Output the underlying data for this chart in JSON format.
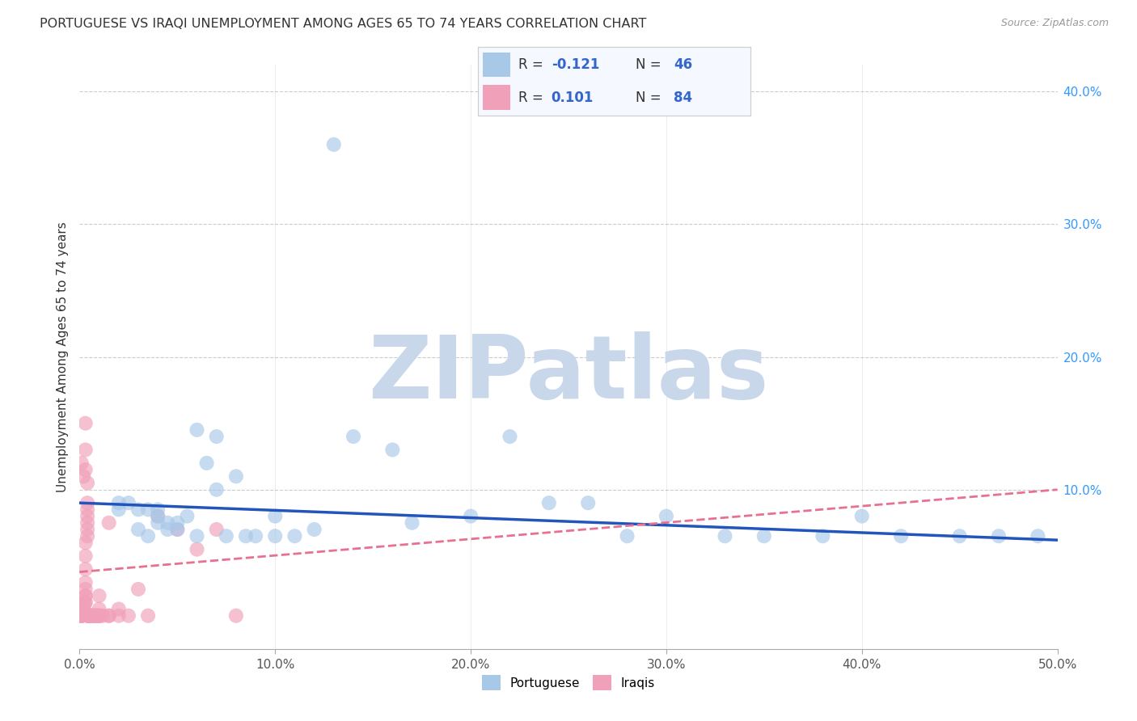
{
  "title": "PORTUGUESE VS IRAQI UNEMPLOYMENT AMONG AGES 65 TO 74 YEARS CORRELATION CHART",
  "source": "Source: ZipAtlas.com",
  "ylabel": "Unemployment Among Ages 65 to 74 years",
  "xlim": [
    0.0,
    0.5
  ],
  "ylim": [
    -0.02,
    0.42
  ],
  "background_color": "#ffffff",
  "watermark": "ZIPatlas",
  "watermark_color": "#c8d8ea",
  "portuguese_color": "#a8c8e8",
  "iraqi_color": "#f0a0b8",
  "portuguese_line_color": "#2255bb",
  "iraqi_line_color": "#e87090",
  "grid_color": "#cccccc",
  "portuguese_x": [
    0.02,
    0.02,
    0.025,
    0.03,
    0.03,
    0.035,
    0.035,
    0.04,
    0.04,
    0.04,
    0.045,
    0.045,
    0.05,
    0.05,
    0.055,
    0.06,
    0.06,
    0.065,
    0.07,
    0.07,
    0.075,
    0.08,
    0.085,
    0.09,
    0.1,
    0.1,
    0.11,
    0.12,
    0.13,
    0.14,
    0.16,
    0.17,
    0.2,
    0.22,
    0.24,
    0.26,
    0.28,
    0.3,
    0.33,
    0.35,
    0.38,
    0.4,
    0.42,
    0.45,
    0.47,
    0.49
  ],
  "portuguese_y": [
    0.09,
    0.085,
    0.09,
    0.085,
    0.07,
    0.085,
    0.065,
    0.085,
    0.08,
    0.075,
    0.075,
    0.07,
    0.075,
    0.07,
    0.08,
    0.145,
    0.065,
    0.12,
    0.14,
    0.1,
    0.065,
    0.11,
    0.065,
    0.065,
    0.08,
    0.065,
    0.065,
    0.07,
    0.36,
    0.14,
    0.13,
    0.075,
    0.08,
    0.14,
    0.09,
    0.09,
    0.065,
    0.08,
    0.065,
    0.065,
    0.065,
    0.08,
    0.065,
    0.065,
    0.065,
    0.065
  ],
  "iraqi_x": [
    0.0,
    0.001,
    0.001,
    0.001,
    0.001,
    0.001,
    0.002,
    0.002,
    0.002,
    0.002,
    0.003,
    0.003,
    0.003,
    0.003,
    0.003,
    0.003,
    0.003,
    0.003,
    0.003,
    0.004,
    0.004,
    0.004,
    0.004,
    0.004,
    0.004,
    0.004,
    0.005,
    0.005,
    0.005,
    0.005,
    0.005,
    0.005,
    0.005,
    0.005,
    0.005,
    0.005,
    0.006,
    0.006,
    0.006,
    0.007,
    0.007,
    0.008,
    0.008,
    0.009,
    0.01,
    0.01,
    0.01,
    0.01,
    0.015,
    0.015,
    0.02,
    0.02,
    0.025,
    0.03,
    0.035,
    0.04,
    0.05,
    0.06,
    0.07,
    0.08,
    0.001,
    0.002,
    0.003,
    0.003,
    0.003,
    0.004,
    0.004,
    0.005,
    0.005,
    0.005,
    0.005,
    0.005,
    0.005,
    0.005,
    0.005,
    0.006,
    0.006,
    0.007,
    0.008,
    0.009,
    0.01,
    0.01,
    0.012,
    0.015
  ],
  "iraqi_y": [
    0.005,
    0.005,
    0.005,
    0.005,
    0.005,
    0.01,
    0.01,
    0.01,
    0.01,
    0.015,
    0.015,
    0.015,
    0.02,
    0.02,
    0.025,
    0.03,
    0.04,
    0.05,
    0.06,
    0.065,
    0.07,
    0.075,
    0.08,
    0.085,
    0.09,
    0.105,
    0.005,
    0.005,
    0.005,
    0.005,
    0.005,
    0.005,
    0.005,
    0.005,
    0.005,
    0.005,
    0.005,
    0.005,
    0.005,
    0.005,
    0.005,
    0.005,
    0.005,
    0.005,
    0.005,
    0.005,
    0.01,
    0.02,
    0.005,
    0.075,
    0.005,
    0.01,
    0.005,
    0.025,
    0.005,
    0.08,
    0.07,
    0.055,
    0.07,
    0.005,
    0.12,
    0.11,
    0.115,
    0.13,
    0.15,
    0.005,
    0.005,
    0.005,
    0.005,
    0.005,
    0.005,
    0.005,
    0.005,
    0.005,
    0.005,
    0.005,
    0.005,
    0.005,
    0.005,
    0.005,
    0.005,
    0.005,
    0.005,
    0.005
  ],
  "port_line_x0": 0.0,
  "port_line_x1": 0.5,
  "port_line_y0": 0.09,
  "port_line_y1": 0.062,
  "iraqi_line_x0": 0.0,
  "iraqi_line_x1": 0.5,
  "iraqi_line_y0": 0.038,
  "iraqi_line_y1": 0.1
}
